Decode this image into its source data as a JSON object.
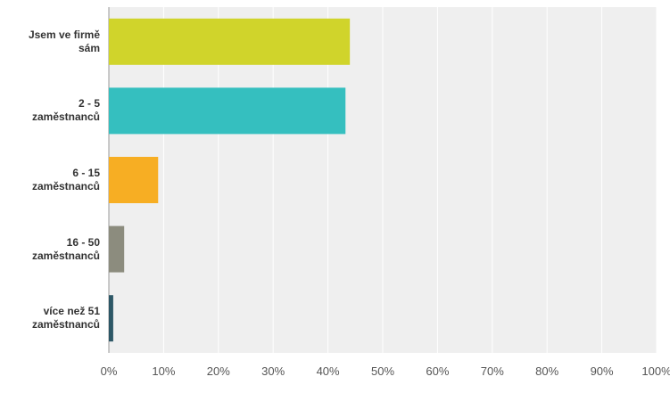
{
  "chart_data": {
    "type": "hbar",
    "categories": [
      "Jsem ve firmě sám",
      "2 - 5 zaměstnanců",
      "6 - 15 zaměstnanců",
      "16 - 50 zaměstnanců",
      "více než 51 zaměstnanců"
    ],
    "values": [
      44,
      43.2,
      9,
      2.8,
      0.8
    ],
    "colors": [
      "#d0d42b",
      "#35bfbf",
      "#f7ae23",
      "#8c8c7e",
      "#2d5766"
    ],
    "xlim": [
      0,
      100
    ],
    "xticks": [
      {
        "value": 0,
        "label": "0%"
      },
      {
        "value": 10,
        "label": "10%"
      },
      {
        "value": 20,
        "label": "20%"
      },
      {
        "value": 30,
        "label": "30%"
      },
      {
        "value": 40,
        "label": "40%"
      },
      {
        "value": 50,
        "label": "50%"
      },
      {
        "value": 60,
        "label": "60%"
      },
      {
        "value": 70,
        "label": "70%"
      },
      {
        "value": 80,
        "label": "80%"
      },
      {
        "value": 90,
        "label": "90%"
      },
      {
        "value": 100,
        "label": "100%"
      }
    ],
    "grid": true
  }
}
